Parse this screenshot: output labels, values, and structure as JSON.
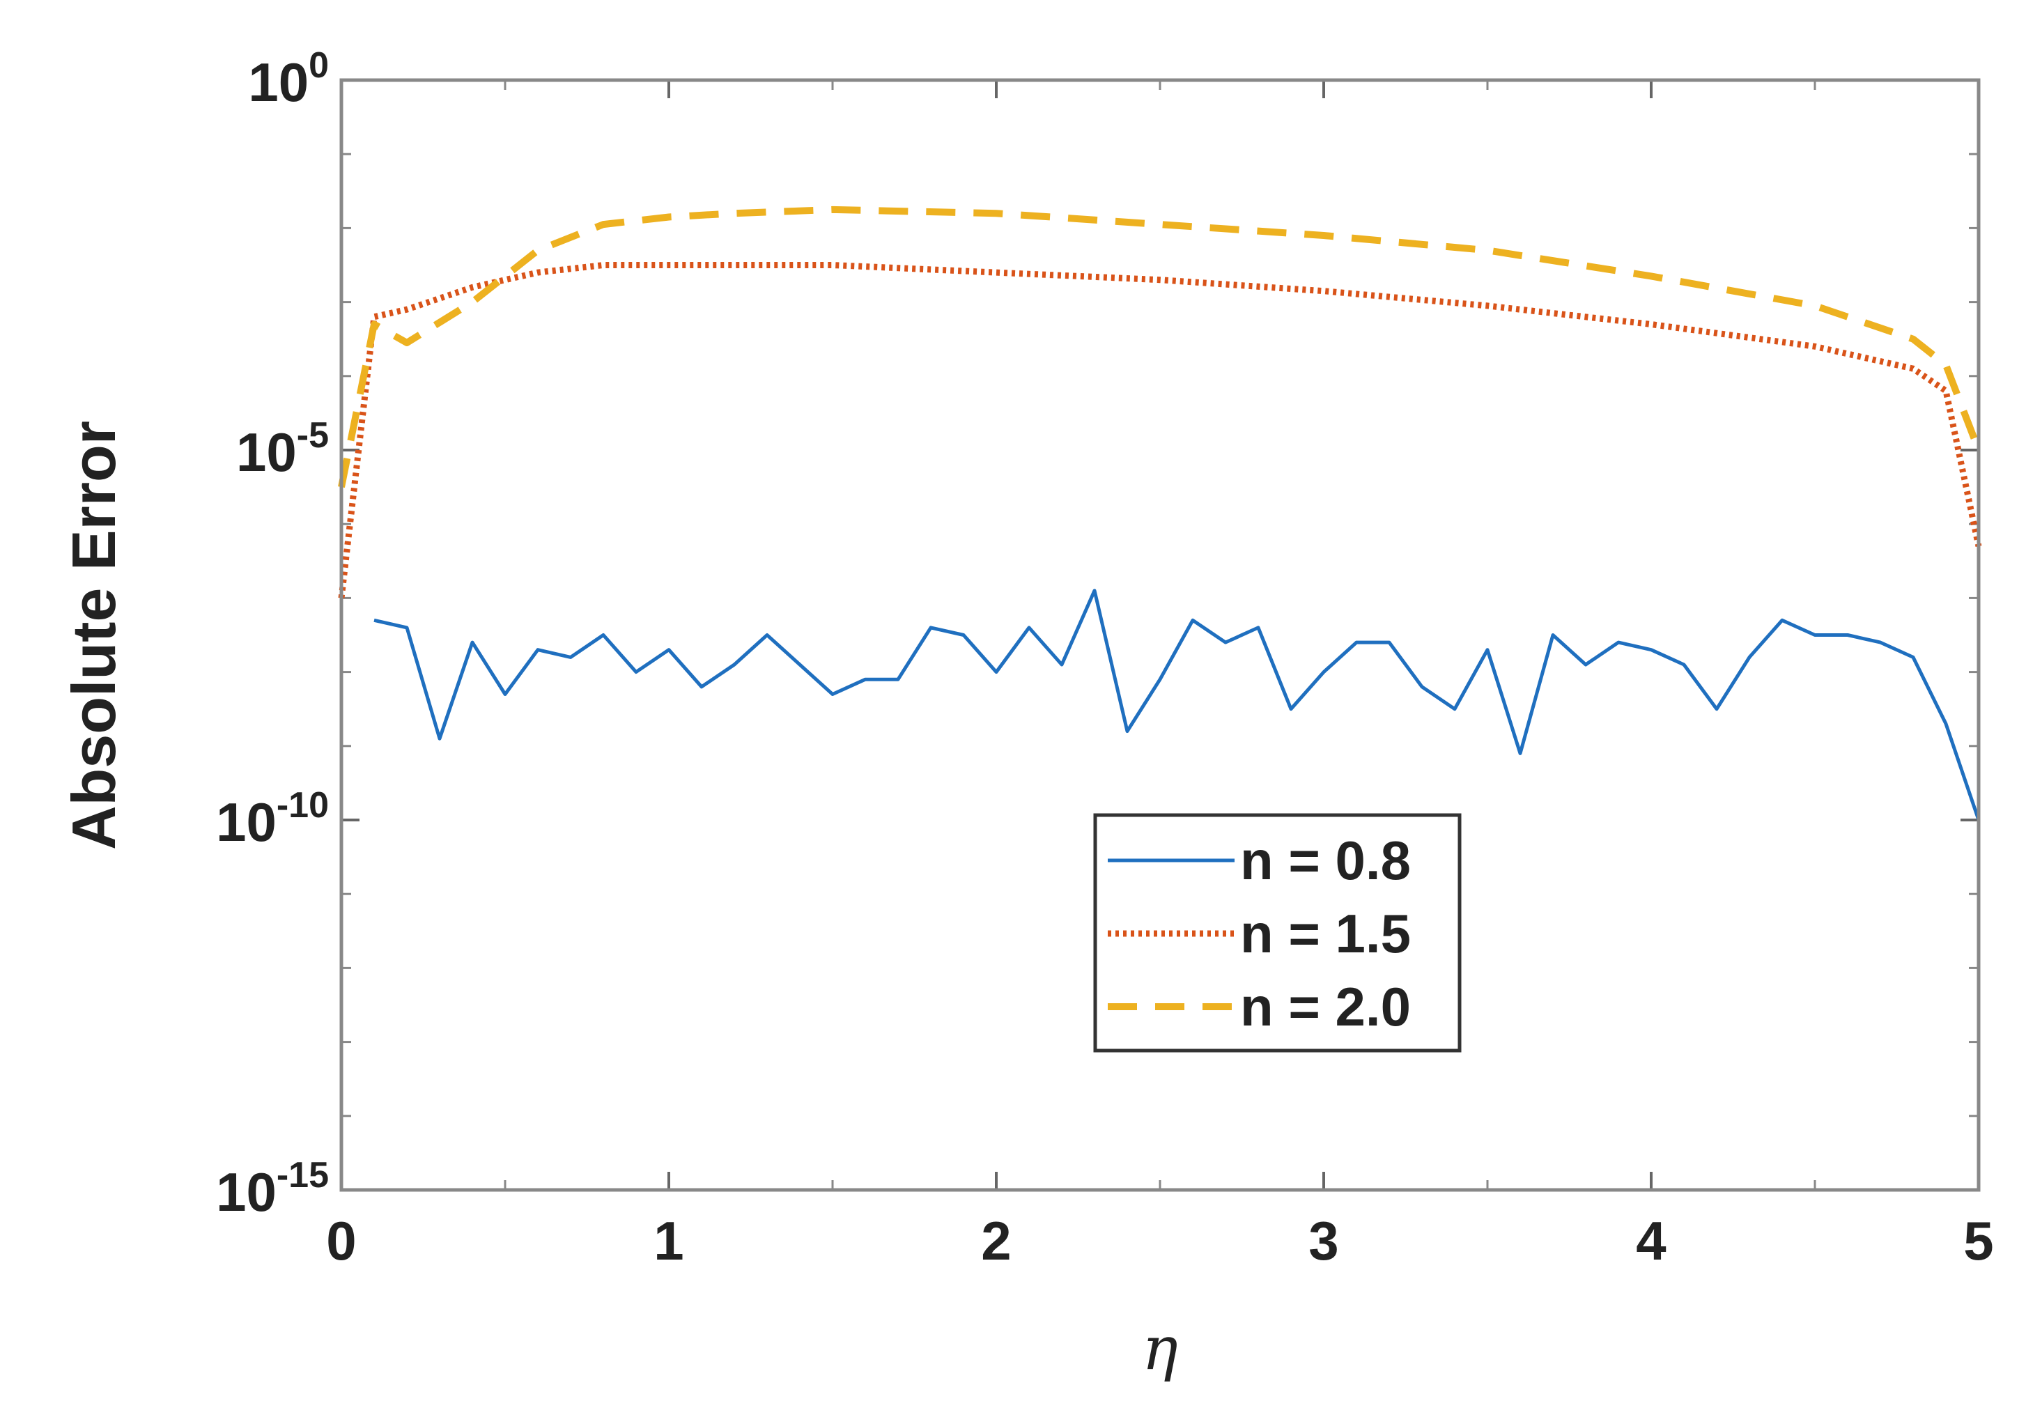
{
  "chart_data": {
    "type": "line",
    "xlabel": "η",
    "ylabel": "Absolute Error",
    "xlim": [
      0,
      5
    ],
    "ylim_exponent": [
      -15,
      0
    ],
    "yscale": "log",
    "grid": false,
    "legend_position": "lower-center-right",
    "x_ticks": [
      "0",
      "1",
      "2",
      "3",
      "4",
      "5"
    ],
    "y_ticks": [
      {
        "exp": 0,
        "base": "10",
        "sup": "0"
      },
      {
        "exp": -5,
        "base": "10",
        "sup": "-5"
      },
      {
        "exp": -10,
        "base": "10",
        "sup": "-10"
      },
      {
        "exp": -15,
        "base": "10",
        "sup": "-15"
      }
    ],
    "series": [
      {
        "name": "n = 0.8",
        "label": "n = 0.8",
        "color": "#1f6fbf",
        "style": "solid",
        "x": [
          0.1,
          0.2,
          0.3,
          0.4,
          0.5,
          0.6,
          0.7,
          0.8,
          0.9,
          1.0,
          1.1,
          1.2,
          1.3,
          1.4,
          1.5,
          1.6,
          1.7,
          1.8,
          1.9,
          2.0,
          2.1,
          2.2,
          2.3,
          2.4,
          2.5,
          2.6,
          2.7,
          2.8,
          2.9,
          3.0,
          3.1,
          3.2,
          3.3,
          3.4,
          3.5,
          3.6,
          3.7,
          3.8,
          3.9,
          4.0,
          4.1,
          4.2,
          4.3,
          4.4,
          4.5,
          4.6,
          4.7,
          4.8,
          4.9,
          5.0
        ],
        "log10_y": [
          -7.3,
          -7.4,
          -8.9,
          -7.6,
          -8.3,
          -7.7,
          -7.8,
          -7.5,
          -8.0,
          -7.7,
          -8.2,
          -7.9,
          -7.5,
          -7.9,
          -8.3,
          -8.1,
          -8.1,
          -7.4,
          -7.5,
          -8.0,
          -7.4,
          -7.9,
          -6.9,
          -8.8,
          -8.1,
          -7.3,
          -7.6,
          -7.4,
          -8.5,
          -8.0,
          -7.6,
          -7.6,
          -8.2,
          -8.5,
          -7.7,
          -9.1,
          -7.5,
          -7.9,
          -7.6,
          -7.7,
          -7.9,
          -8.5,
          -7.8,
          -7.3,
          -7.5,
          -7.5,
          -7.6,
          -7.8,
          -8.7,
          -10.0
        ]
      },
      {
        "name": "n = 1.5",
        "label": "n = 1.5",
        "color": "#d95319",
        "style": "dotted",
        "x": [
          0,
          0.1,
          0.2,
          0.4,
          0.6,
          0.8,
          1.0,
          1.2,
          1.5,
          2.0,
          2.5,
          3.0,
          3.5,
          4.0,
          4.5,
          4.8,
          4.9,
          5.0
        ],
        "log10_y": [
          -7.0,
          -3.2,
          -3.1,
          -2.8,
          -2.6,
          -2.5,
          -2.5,
          -2.5,
          -2.5,
          -2.6,
          -2.7,
          -2.85,
          -3.05,
          -3.3,
          -3.6,
          -3.9,
          -4.2,
          -6.3
        ]
      },
      {
        "name": "n = 2.0",
        "label": "n = 2.0",
        "color": "#edb120",
        "style": "dashed",
        "x": [
          0,
          0.1,
          0.2,
          0.4,
          0.6,
          0.8,
          1.0,
          1.2,
          1.5,
          2.0,
          2.5,
          3.0,
          3.5,
          4.0,
          4.5,
          4.8,
          4.9,
          5.0
        ],
        "log10_y": [
          -5.5,
          -3.3,
          -3.55,
          -3.0,
          -2.3,
          -1.95,
          -1.85,
          -1.8,
          -1.75,
          -1.8,
          -1.95,
          -2.1,
          -2.3,
          -2.65,
          -3.05,
          -3.5,
          -3.85,
          -5.0
        ]
      }
    ]
  }
}
